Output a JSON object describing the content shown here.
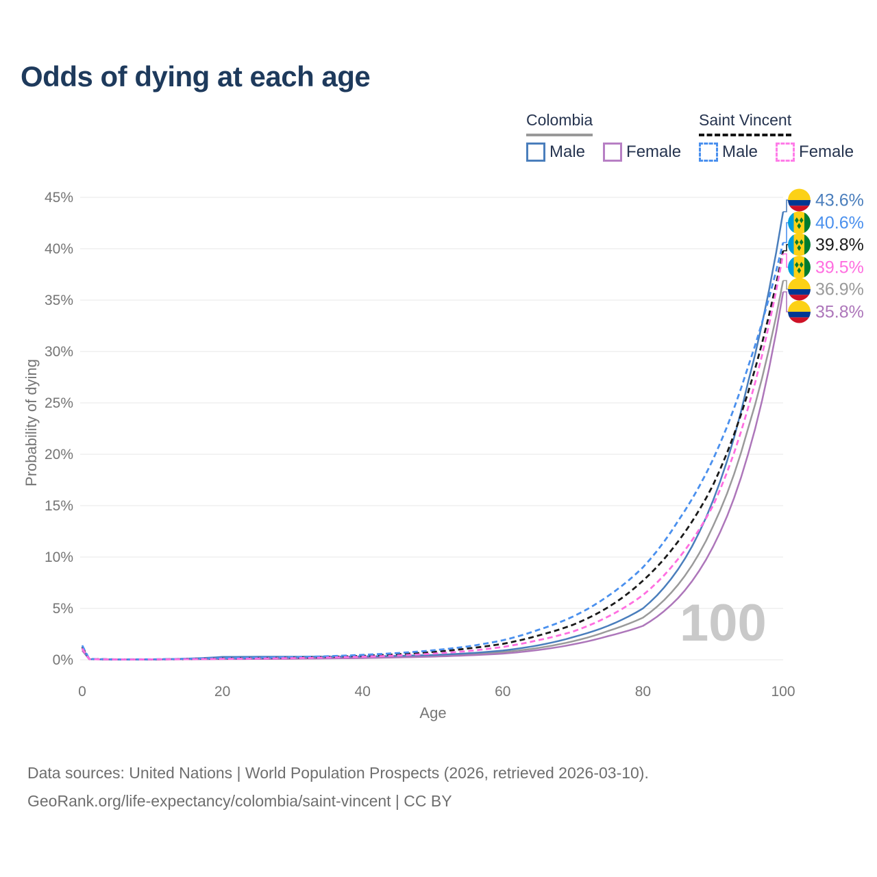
{
  "title": "Odds of dying at each age",
  "legend": {
    "groups": [
      {
        "label": "Colombia",
        "underline_color": "#999999",
        "underline_style": "solid",
        "items": [
          {
            "label": "Male",
            "color": "#4a7ebc",
            "dashed": false
          },
          {
            "label": "Female",
            "color": "#b77fc4",
            "dashed": false
          }
        ]
      },
      {
        "label": "Saint Vincent",
        "underline_color": "#151515",
        "underline_style": "dashed",
        "items": [
          {
            "label": "Male",
            "color": "#4a90ee",
            "dashed": true
          },
          {
            "label": "Female",
            "color": "#ff7ce8",
            "dashed": true
          }
        ]
      }
    ]
  },
  "axes": {
    "y_title": "Probability of dying",
    "x_title": "Age",
    "y_tick_labels": [
      "0%",
      "5%",
      "10%",
      "15%",
      "20%",
      "25%",
      "30%",
      "35%",
      "40%",
      "45%"
    ],
    "x_tick_labels": [
      "0",
      "20",
      "40",
      "60",
      "80",
      "100"
    ]
  },
  "watermark": "100",
  "footer": {
    "line1": "Data sources: United Nations | World Population Prospects (2026, retrieved 2026-03-10).",
    "line2": "GeoRank.org/life-expectancy/colombia/saint-vincent | CC BY"
  },
  "chart_data": {
    "type": "line",
    "title": "Odds of dying at each age",
    "xlabel": "Age",
    "ylabel": "Probability of dying",
    "xlim": [
      0,
      100
    ],
    "ylim": [
      0,
      45
    ],
    "grid": "horizontal",
    "legend_position": "top-right",
    "x_ticks": [
      0,
      20,
      40,
      60,
      80,
      100
    ],
    "y_ticks_percent": [
      0,
      5,
      10,
      15,
      20,
      25,
      30,
      35,
      40,
      45
    ],
    "ages": [
      0,
      1,
      5,
      10,
      15,
      20,
      25,
      30,
      35,
      40,
      45,
      50,
      55,
      60,
      65,
      70,
      75,
      80,
      85,
      90,
      95,
      100
    ],
    "series": [
      {
        "id": "colombia-male",
        "name": "Colombia Male",
        "country": "Colombia",
        "sex": "Male",
        "style": "solid",
        "color": "#4a7ebc",
        "flag": "colombia",
        "end_label": "43.6%",
        "end_value": 43.6,
        "values_percent": [
          1.2,
          0.07,
          0.03,
          0.04,
          0.12,
          0.28,
          0.3,
          0.3,
          0.31,
          0.33,
          0.38,
          0.47,
          0.63,
          0.9,
          1.4,
          2.2,
          3.3,
          5.0,
          8.8,
          15.5,
          27.0,
          43.6
        ]
      },
      {
        "id": "saint-vincent-male",
        "name": "Saint Vincent Male",
        "country": "Saint Vincent",
        "sex": "Male",
        "style": "dashed",
        "color": "#4a90ee",
        "flag": "saint-vincent",
        "end_label": "40.6%",
        "end_value": 40.6,
        "values_percent": [
          1.4,
          0.09,
          0.04,
          0.05,
          0.1,
          0.16,
          0.2,
          0.26,
          0.35,
          0.48,
          0.66,
          0.92,
          1.3,
          1.9,
          2.9,
          4.2,
          6.2,
          9.0,
          13.5,
          19.5,
          28.5,
          40.6
        ]
      },
      {
        "id": "saint-vincent-both",
        "name": "Saint Vincent",
        "country": "Saint Vincent",
        "sex": "Both",
        "style": "dashed",
        "color": "#1a1a1a",
        "flag": "saint-vincent",
        "end_label": "39.8%",
        "end_value": 39.8,
        "values_percent": [
          1.25,
          0.08,
          0.04,
          0.04,
          0.08,
          0.13,
          0.16,
          0.21,
          0.28,
          0.39,
          0.54,
          0.76,
          1.1,
          1.55,
          2.35,
          3.4,
          5.1,
          7.7,
          11.5,
          17.0,
          26.0,
          39.8
        ]
      },
      {
        "id": "saint-vincent-female",
        "name": "Saint Vincent Female",
        "country": "Saint Vincent",
        "sex": "Female",
        "style": "dashed",
        "color": "#ff6ee0",
        "flag": "saint-vincent",
        "end_label": "39.5%",
        "end_value": 39.5,
        "values_percent": [
          1.1,
          0.07,
          0.03,
          0.04,
          0.06,
          0.09,
          0.12,
          0.16,
          0.22,
          0.3,
          0.42,
          0.6,
          0.85,
          1.25,
          1.9,
          2.75,
          4.2,
          6.3,
          9.8,
          15.0,
          24.5,
          39.5
        ]
      },
      {
        "id": "colombia-both",
        "name": "Colombia",
        "country": "Colombia",
        "sex": "Both",
        "style": "solid",
        "color": "#9a9a9a",
        "flag": "colombia",
        "end_label": "36.9%",
        "end_value": 36.9,
        "values_percent": [
          1.05,
          0.06,
          0.03,
          0.03,
          0.08,
          0.17,
          0.19,
          0.2,
          0.22,
          0.25,
          0.3,
          0.39,
          0.53,
          0.75,
          1.15,
          1.8,
          2.8,
          4.1,
          7.3,
          13.0,
          22.5,
          36.9
        ]
      },
      {
        "id": "colombia-female",
        "name": "Colombia Female",
        "country": "Colombia",
        "sex": "Female",
        "style": "solid",
        "color": "#ad76ba",
        "flag": "colombia",
        "end_label": "35.8%",
        "end_value": 35.8,
        "values_percent": [
          0.9,
          0.06,
          0.02,
          0.03,
          0.05,
          0.07,
          0.08,
          0.1,
          0.13,
          0.17,
          0.23,
          0.31,
          0.43,
          0.6,
          0.95,
          1.5,
          2.3,
          3.3,
          6.0,
          11.0,
          20.0,
          35.8
        ]
      }
    ],
    "flag_colors": {
      "colombia": {
        "yellow": "#FCD116",
        "blue": "#003893",
        "red": "#CE1126"
      },
      "saint_vincent": {
        "blue": "#009EDB",
        "yellow": "#FCD116",
        "green": "#007C2E"
      }
    }
  }
}
